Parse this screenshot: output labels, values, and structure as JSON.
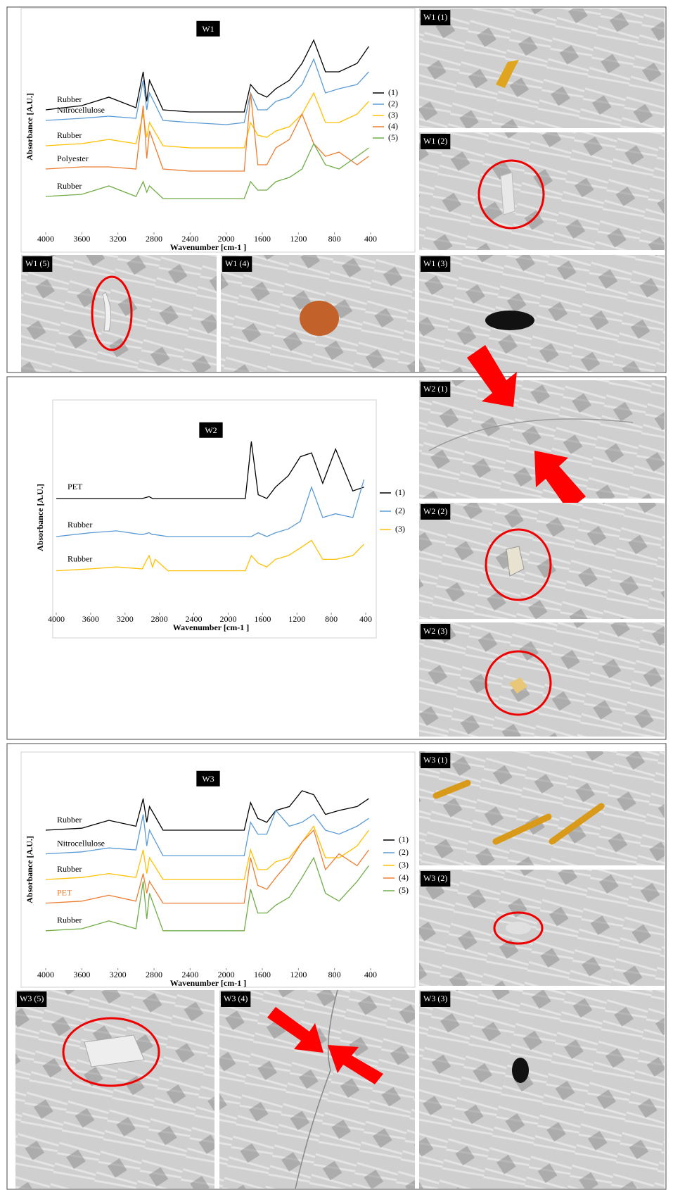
{
  "chart_data": [
    {
      "type": "line",
      "title": "W1",
      "xlabel": "Wavenumber [cm-1 ]",
      "ylabel": "Absorbance [A.U.]",
      "xlim": [
        4000,
        400
      ],
      "xticks": [
        4000,
        3600,
        3200,
        2800,
        2400,
        2000,
        1600,
        1200,
        800,
        400
      ],
      "ylim": [
        0,
        100
      ],
      "legend": "right",
      "x": [
        4000,
        3600,
        3300,
        3000,
        2920,
        2880,
        2850,
        2700,
        2400,
        2000,
        1800,
        1730,
        1650,
        1550,
        1450,
        1300,
        1160,
        1030,
        900,
        750,
        550,
        420
      ],
      "series": [
        {
          "name": "(1)",
          "label": "Rubber",
          "color": "#000000",
          "values": [
            58,
            60,
            64,
            59,
            76,
            62,
            72,
            58,
            57,
            57,
            57,
            70,
            66,
            64,
            68,
            72,
            80,
            91,
            76,
            76,
            80,
            88
          ]
        },
        {
          "name": "(2)",
          "label": "Nitrocellulose",
          "color": "#5b9bd5",
          "values": [
            53,
            54,
            55,
            54,
            72,
            58,
            66,
            53,
            52,
            51,
            52,
            66,
            58,
            58,
            62,
            64,
            70,
            82,
            66,
            68,
            70,
            76
          ]
        },
        {
          "name": "(3)",
          "label": "Rubber",
          "color": "#ffc000",
          "values": [
            41,
            42,
            44,
            42,
            56,
            45,
            52,
            41,
            40,
            40,
            40,
            52,
            46,
            45,
            48,
            50,
            56,
            66,
            52,
            52,
            56,
            62
          ]
        },
        {
          "name": "(4)",
          "label": "Polyester",
          "color": "#ed7d31",
          "values": [
            30,
            31,
            31,
            30,
            60,
            35,
            48,
            30,
            29,
            29,
            29,
            66,
            32,
            32,
            40,
            44,
            56,
            42,
            36,
            38,
            32,
            36
          ]
        },
        {
          "name": "(5)",
          "label": "Rubber",
          "color": "#70ad47",
          "values": [
            17,
            18,
            22,
            17,
            24,
            19,
            22,
            16,
            16,
            16,
            16,
            24,
            20,
            20,
            24,
            26,
            30,
            42,
            32,
            30,
            36,
            40
          ]
        }
      ]
    },
    {
      "type": "line",
      "title": "W2",
      "xlabel": "Wavenumber [cm-1 ]",
      "ylabel": "Absorbance [A.U.]",
      "xlim": [
        4000,
        400
      ],
      "xticks": [
        4000,
        3600,
        3200,
        2800,
        2400,
        2000,
        1600,
        1200,
        800,
        400
      ],
      "ylim": [
        0,
        100
      ],
      "legend": "right",
      "x": [
        4000,
        3600,
        3300,
        3000,
        2920,
        2880,
        2850,
        2700,
        2400,
        2000,
        1800,
        1730,
        1650,
        1550,
        1450,
        1300,
        1160,
        1030,
        900,
        750,
        550,
        420
      ],
      "series": [
        {
          "name": "(1)",
          "label": "PET",
          "color": "#000000",
          "values": [
            60,
            60,
            60,
            60,
            61,
            60,
            60,
            60,
            60,
            60,
            60,
            90,
            62,
            60,
            66,
            72,
            82,
            84,
            68,
            86,
            64,
            66
          ]
        },
        {
          "name": "(2)",
          "label": "Rubber",
          "color": "#5b9bd5",
          "values": [
            40,
            42,
            43,
            41,
            42,
            41,
            41,
            40,
            40,
            40,
            40,
            40,
            42,
            40,
            42,
            44,
            48,
            66,
            50,
            52,
            50,
            70
          ]
        },
        {
          "name": "(3)",
          "label": "Rubber",
          "color": "#ffc000",
          "values": [
            22,
            23,
            24,
            23,
            30,
            24,
            28,
            22,
            22,
            22,
            22,
            30,
            26,
            24,
            28,
            30,
            34,
            38,
            28,
            28,
            30,
            36
          ]
        }
      ]
    },
    {
      "type": "line",
      "title": "W3",
      "xlabel": "Wavenumber [cm-1 ]",
      "ylabel": "Absorbance [A.U.]",
      "xlim": [
        4000,
        400
      ],
      "xticks": [
        4000,
        3600,
        3200,
        2800,
        2400,
        2000,
        1600,
        1200,
        800,
        400
      ],
      "ylim": [
        0,
        100
      ],
      "legend": "right",
      "x": [
        4000,
        3600,
        3300,
        3000,
        2920,
        2880,
        2850,
        2700,
        2400,
        2000,
        1800,
        1730,
        1650,
        1550,
        1450,
        1300,
        1160,
        1030,
        900,
        750,
        550,
        420
      ],
      "series": [
        {
          "name": "(1)",
          "label": "Rubber",
          "color": "#000000",
          "values": [
            70,
            71,
            75,
            72,
            86,
            74,
            82,
            70,
            70,
            70,
            70,
            84,
            76,
            74,
            80,
            82,
            90,
            88,
            78,
            80,
            82,
            86
          ]
        },
        {
          "name": "(2)",
          "label": "Nitrocellulose",
          "color": "#5b9bd5",
          "values": [
            58,
            59,
            61,
            60,
            78,
            62,
            70,
            57,
            57,
            57,
            57,
            74,
            68,
            68,
            80,
            72,
            74,
            78,
            70,
            68,
            72,
            76
          ]
        },
        {
          "name": "(3)",
          "label": "Rubber",
          "color": "#ffc000",
          "values": [
            45,
            46,
            48,
            46,
            60,
            48,
            56,
            45,
            45,
            45,
            45,
            60,
            50,
            50,
            54,
            56,
            64,
            72,
            56,
            56,
            62,
            70
          ]
        },
        {
          "name": "(4)",
          "label": "PET",
          "label_color": "#ed7d31",
          "color": "#ed7d31",
          "values": [
            33,
            34,
            37,
            34,
            48,
            38,
            44,
            33,
            33,
            33,
            33,
            56,
            42,
            40,
            46,
            54,
            64,
            70,
            50,
            58,
            52,
            60
          ]
        },
        {
          "name": "(5)",
          "label": "Rubber",
          "color": "#70ad47",
          "values": [
            19,
            20,
            24,
            20,
            44,
            25,
            38,
            19,
            19,
            19,
            19,
            40,
            28,
            28,
            32,
            36,
            46,
            56,
            38,
            34,
            44,
            52
          ]
        }
      ]
    }
  ],
  "photos": [
    {
      "label": "W1 (1)"
    },
    {
      "label": "W1 (2)"
    },
    {
      "label": "W1 (5)"
    },
    {
      "label": "W1 (4)"
    },
    {
      "label": "W1 (3)"
    },
    {
      "label": "W2 (1)"
    },
    {
      "label": "W2 (2)"
    },
    {
      "label": "W2 (3)"
    },
    {
      "label": "W3 (1)"
    },
    {
      "label": "W3 (2)"
    },
    {
      "label": "W3 (5)"
    },
    {
      "label": "W3 (4)"
    },
    {
      "label": "W3 (3)"
    }
  ]
}
